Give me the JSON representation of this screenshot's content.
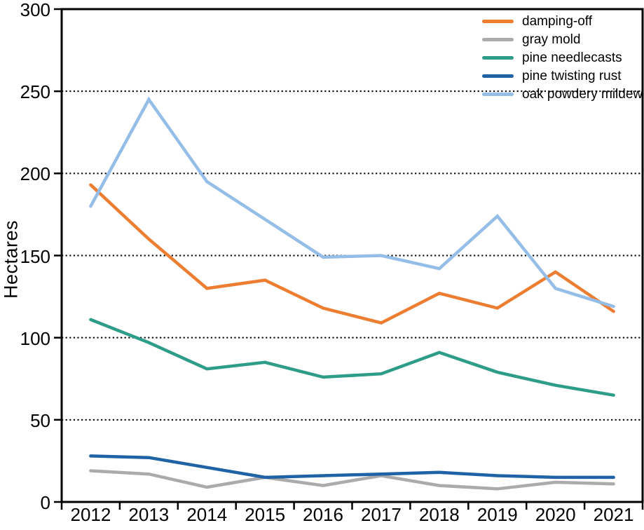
{
  "chart_data": {
    "type": "line",
    "title": "",
    "xlabel": "",
    "ylabel": "Hectares",
    "ylim": [
      0,
      300
    ],
    "yticks": [
      0,
      50,
      100,
      150,
      200,
      250,
      300
    ],
    "grid": "horizontal dotted lines at 50..250",
    "legend_position": "top-right inside plot",
    "x": [
      "2012",
      "2013",
      "2014",
      "2015",
      "2016",
      "2017",
      "2018",
      "2019",
      "2020",
      "2021"
    ],
    "series": [
      {
        "name": "damping-off",
        "color": "#ED7D31",
        "values": [
          193,
          160,
          130,
          135,
          118,
          109,
          127,
          118,
          140,
          116
        ]
      },
      {
        "name": "gray mold",
        "color": "#ABABAB",
        "values": [
          19,
          17,
          9,
          15,
          10,
          16,
          10,
          8,
          12,
          11
        ]
      },
      {
        "name": "pine needlecasts",
        "color": "#2E9D87",
        "values": [
          111,
          97,
          81,
          85,
          76,
          78,
          91,
          79,
          71,
          65
        ]
      },
      {
        "name": "pine twisting rust",
        "color": "#1F62A5",
        "values": [
          28,
          27,
          21,
          15,
          16,
          17,
          18,
          16,
          15,
          15
        ]
      },
      {
        "name": "oak powdery mildew",
        "color": "#94BDE8",
        "values": [
          180,
          245,
          195,
          172,
          149,
          150,
          142,
          174,
          130,
          119
        ]
      }
    ],
    "axis_color": "#000000",
    "background_color": "#ffffff"
  }
}
